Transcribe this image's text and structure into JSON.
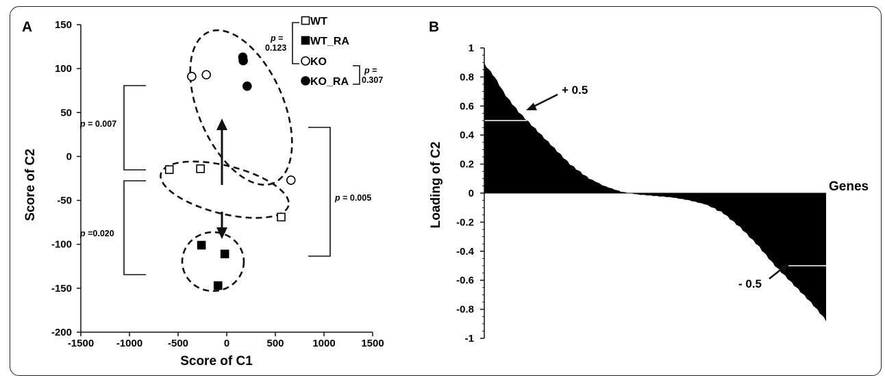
{
  "chart_data": [
    {
      "panel": "A",
      "type": "scatter",
      "xlabel": "Score of C1",
      "ylabel": "Score of C2",
      "xlim": [
        -1500,
        1500
      ],
      "ylim": [
        -200,
        150
      ],
      "xticks": [
        -1500,
        -1000,
        -500,
        0,
        500,
        1000,
        1500
      ],
      "yticks": [
        -200,
        -150,
        -100,
        -50,
        0,
        50,
        100,
        150
      ],
      "legend_position": "top-right",
      "series": [
        {
          "name": "WT",
          "marker": "open-square",
          "points": [
            [
              -590,
              -15
            ],
            [
              -270,
              -14
            ],
            [
              560,
              -69
            ]
          ]
        },
        {
          "name": "WT_RA",
          "marker": "filled-square",
          "points": [
            [
              -260,
              -101
            ],
            [
              -20,
              -111
            ],
            [
              -90,
              -147
            ]
          ]
        },
        {
          "name": "KO",
          "marker": "open-circle",
          "points": [
            [
              -360,
              91
            ],
            [
              -210,
              93
            ],
            [
              660,
              -27
            ]
          ]
        },
        {
          "name": "KO_RA",
          "marker": "filled-circle",
          "points": [
            [
              165,
              113
            ],
            [
              170,
              109
            ],
            [
              210,
              80
            ]
          ]
        }
      ],
      "annotations": {
        "p_wt_wtra": {
          "label": "p",
          "value": "= 0.123"
        },
        "p_ko_kora": {
          "label": "p",
          "value": "= 0.307"
        },
        "p_upper": {
          "label": "p",
          "value": " = 0.007"
        },
        "p_lower": {
          "label": "p",
          "value": " =0.020"
        },
        "p_right": {
          "label": "p",
          "value": " = 0.005"
        }
      }
    },
    {
      "panel": "B",
      "type": "area",
      "xlabel": "Genes",
      "ylabel": "Loading of C2",
      "ylim": [
        -1,
        1
      ],
      "yticks": [
        "1",
        "0.8",
        "0.6",
        "0.4",
        "0.2",
        "0",
        "-0.2",
        "-0.4",
        "-0.6",
        "-0.8",
        "-1"
      ],
      "loading_curve": {
        "x": [
          0,
          0.01,
          0.03,
          0.06,
          0.1,
          0.15,
          0.2,
          0.25,
          0.3,
          0.35,
          0.4,
          0.45,
          0.5,
          0.55,
          0.6,
          0.65,
          0.7,
          0.75,
          0.8,
          0.85,
          0.9,
          0.95,
          0.98,
          1
        ],
        "y": [
          0.89,
          0.86,
          0.8,
          0.68,
          0.56,
          0.44,
          0.32,
          0.2,
          0.11,
          0.05,
          0.01,
          -0.01,
          -0.02,
          -0.03,
          -0.05,
          -0.08,
          -0.14,
          -0.24,
          -0.36,
          -0.5,
          -0.62,
          -0.74,
          -0.82,
          -0.88
        ]
      },
      "threshold_lines": [
        0.5,
        -0.5
      ],
      "annotations": {
        "plus": "+ 0.5",
        "minus": "- 0.5"
      }
    }
  ]
}
